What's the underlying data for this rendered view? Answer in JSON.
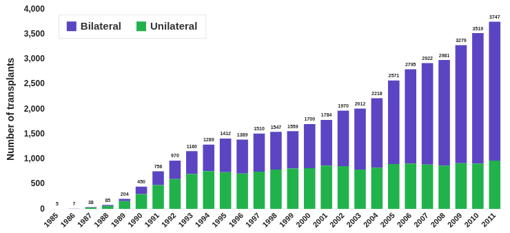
{
  "chart_data": {
    "type": "bar",
    "y_label": "Number of transplants",
    "categories": [
      "1985",
      "1986",
      "1987",
      "1988",
      "1989",
      "1990",
      "1991",
      "1992",
      "1993",
      "1994",
      "1995",
      "1996",
      "1997",
      "1998",
      "1999",
      "2000",
      "2001",
      "2002",
      "2003",
      "2004",
      "2005",
      "2006",
      "2007",
      "2008",
      "2009",
      "2010",
      "2011"
    ],
    "series": [
      {
        "name": "Bilateral",
        "color": "#5b45c2",
        "values": [
          1,
          2,
          5,
          20,
          44,
          150,
          276,
          370,
          460,
          529,
          672,
          679,
          760,
          757,
          749,
          880,
          914,
          1110,
          1222,
          1388,
          1671,
          1885,
          2032,
          2111,
          2359,
          2609,
          2777
        ]
      },
      {
        "name": "Unilateral",
        "color": "#22b24c",
        "values": [
          4,
          5,
          33,
          65,
          160,
          300,
          480,
          600,
          700,
          760,
          740,
          710,
          750,
          790,
          810,
          820,
          870,
          860,
          790,
          830,
          900,
          910,
          890,
          870,
          920,
          910,
          970
        ]
      }
    ],
    "totals": [
      5,
      7,
      38,
      85,
      204,
      450,
      756,
      970,
      1160,
      1289,
      1412,
      1389,
      1510,
      1547,
      1559,
      1700,
      1784,
      1970,
      2012,
      2218,
      2571,
      2795,
      2922,
      2981,
      3279,
      3519,
      3747
    ],
    "ylim": [
      0,
      4000
    ],
    "yticks": [
      0,
      500,
      1000,
      1500,
      2000,
      2500,
      3000,
      3500,
      4000
    ],
    "stacked": true,
    "grid": false,
    "legend": "upper left"
  }
}
